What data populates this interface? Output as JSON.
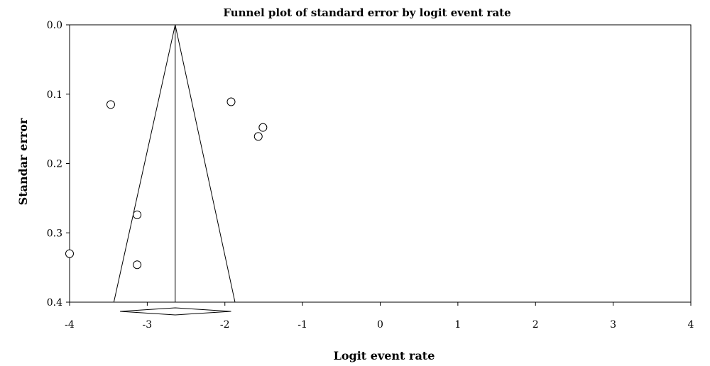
{
  "chart_data": {
    "type": "scatter",
    "title": "Funnel plot of standard error by logit event rate",
    "xlabel": "Logit event rate",
    "ylabel": "Standar error",
    "xlim": [
      -4,
      4
    ],
    "ylim": [
      0,
      0.4
    ],
    "y_inverted": true,
    "grid": false,
    "x_ticks": [
      "-4",
      "-3",
      "-2",
      "-1",
      "0",
      "1",
      "2",
      "3",
      "4"
    ],
    "y_ticks": [
      "0.0",
      "0.1",
      "0.2",
      "0.3",
      "0.4"
    ],
    "points": [
      {
        "x": -3.47,
        "y": 0.115
      },
      {
        "x": -1.92,
        "y": 0.111
      },
      {
        "x": -1.51,
        "y": 0.148
      },
      {
        "x": -1.57,
        "y": 0.161
      },
      {
        "x": -3.13,
        "y": 0.274
      },
      {
        "x": -4.0,
        "y": 0.33
      },
      {
        "x": -3.13,
        "y": 0.346
      }
    ],
    "pooled_estimate": -2.64,
    "funnel_base": [
      -3.43,
      -1.87
    ],
    "diamond": {
      "center": -2.64,
      "lower": -3.35,
      "upper": -1.92
    }
  }
}
